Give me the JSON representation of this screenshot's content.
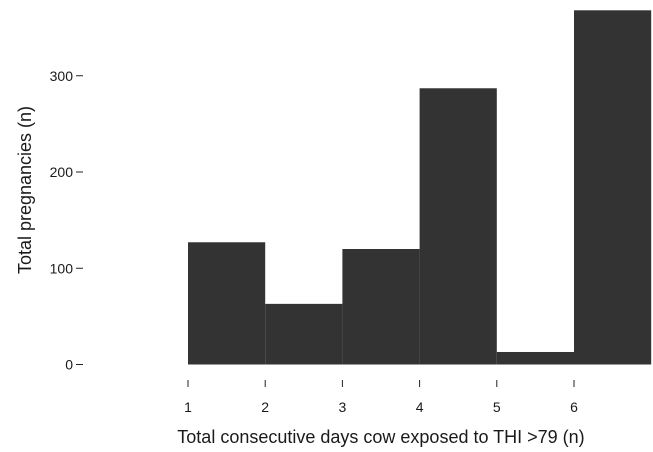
{
  "chart_data": {
    "type": "bar",
    "title": "",
    "xlabel": "Total consecutive days cow exposed to THI >79 (n)",
    "ylabel": "Total pregnancies (n)",
    "x_ticks": [
      "1",
      "2",
      "3",
      "4",
      "5",
      "6"
    ],
    "y_ticks": [
      0,
      100,
      200,
      300
    ],
    "bins": [
      {
        "start": 1,
        "end": 2,
        "value": 127
      },
      {
        "start": 2,
        "end": 3,
        "value": 63
      },
      {
        "start": 3,
        "end": 4,
        "value": 120
      },
      {
        "start": 4,
        "end": 5,
        "value": 287
      },
      {
        "start": 5,
        "end": 6,
        "value": 13
      },
      {
        "start": 6,
        "end": 7,
        "value": 368
      }
    ],
    "xlim": [
      1,
      7
    ],
    "ylim": [
      0,
      368
    ],
    "bar_color": "#333333",
    "grid": false,
    "legend": "none"
  }
}
